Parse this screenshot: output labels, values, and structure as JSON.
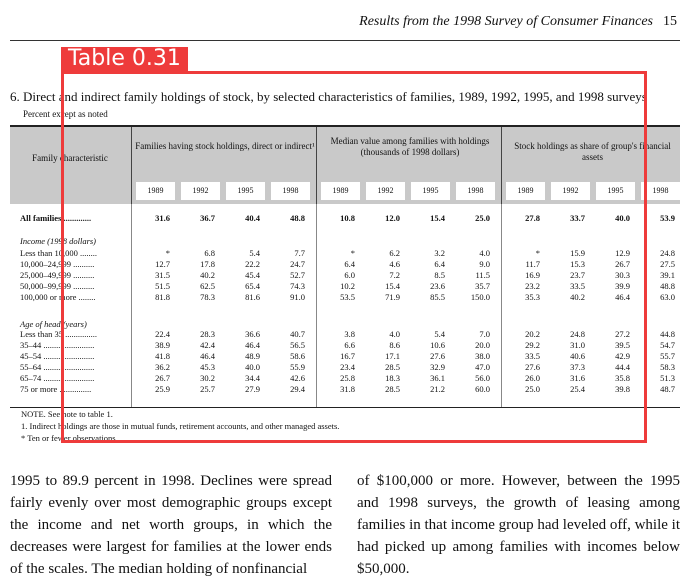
{
  "header": {
    "running_title": "Results from the 1998 Survey of Consumer Finances",
    "page_number": "15"
  },
  "detection": {
    "label": "Table 0.31"
  },
  "table": {
    "title": "6.  Direct and indirect family holdings of stock, by selected characteristics of families, 1989, 1992, 1995, and 1998 surveys",
    "subtitle": "Percent except as noted",
    "stub_header": "Family characteristic",
    "groups": [
      "Families having stock holdings, direct or indirect¹",
      "Median value among families with holdings (thousands of 1998 dollars)",
      "Stock holdings as share of group's financial assets"
    ],
    "years": [
      "1989",
      "1992",
      "1995",
      "1998"
    ],
    "sections": {
      "income": "Income (1998 dollars)",
      "age": "Age of head (years)"
    },
    "rows": [
      {
        "label": "All families .............",
        "values": [
          "31.6",
          "36.7",
          "40.4",
          "48.8",
          "10.8",
          "12.0",
          "15.4",
          "25.0",
          "27.8",
          "33.7",
          "40.0",
          "53.9"
        ]
      },
      {
        "label": "Less than 10,000 ........",
        "values": [
          "*",
          "6.8",
          "5.4",
          "7.7",
          "*",
          "6.2",
          "3.2",
          "4.0",
          "*",
          "15.9",
          "12.9",
          "24.8"
        ]
      },
      {
        "label": "10,000–24,999 ..........",
        "values": [
          "12.7",
          "17.8",
          "22.2",
          "24.7",
          "6.4",
          "4.6",
          "6.4",
          "9.0",
          "11.7",
          "15.3",
          "26.7",
          "27.5"
        ]
      },
      {
        "label": "25,000–49,999 ..........",
        "values": [
          "31.5",
          "40.2",
          "45.4",
          "52.7",
          "6.0",
          "7.2",
          "8.5",
          "11.5",
          "16.9",
          "23.7",
          "30.3",
          "39.1"
        ]
      },
      {
        "label": "50,000–99,999 ..........",
        "values": [
          "51.5",
          "62.5",
          "65.4",
          "74.3",
          "10.2",
          "15.4",
          "23.6",
          "35.7",
          "23.2",
          "33.5",
          "39.9",
          "48.8"
        ]
      },
      {
        "label": "100,000 or more ........",
        "values": [
          "81.8",
          "78.3",
          "81.6",
          "91.0",
          "53.5",
          "71.9",
          "85.5",
          "150.0",
          "35.3",
          "40.2",
          "46.4",
          "63.0"
        ]
      },
      {
        "label": "Less than 35 ...............",
        "values": [
          "22.4",
          "28.3",
          "36.6",
          "40.7",
          "3.8",
          "4.0",
          "5.4",
          "7.0",
          "20.2",
          "24.8",
          "27.2",
          "44.8"
        ]
      },
      {
        "label": "35–44 ........................",
        "values": [
          "38.9",
          "42.4",
          "46.4",
          "56.5",
          "6.6",
          "8.6",
          "10.6",
          "20.0",
          "29.2",
          "31.0",
          "39.5",
          "54.7"
        ]
      },
      {
        "label": "45–54 ........................",
        "values": [
          "41.8",
          "46.4",
          "48.9",
          "58.6",
          "16.7",
          "17.1",
          "27.6",
          "38.0",
          "33.5",
          "40.6",
          "42.9",
          "55.7"
        ]
      },
      {
        "label": "55–64 ........................",
        "values": [
          "36.2",
          "45.3",
          "40.0",
          "55.9",
          "23.4",
          "28.5",
          "32.9",
          "47.0",
          "27.6",
          "37.3",
          "44.4",
          "58.3"
        ]
      },
      {
        "label": "65–74 ........................",
        "values": [
          "26.7",
          "30.2",
          "34.4",
          "42.6",
          "25.8",
          "18.3",
          "36.1",
          "56.0",
          "26.0",
          "31.6",
          "35.8",
          "51.3"
        ]
      },
      {
        "label": "75 or more ...............",
        "values": [
          "25.9",
          "25.7",
          "27.9",
          "29.4",
          "31.8",
          "28.5",
          "21.2",
          "60.0",
          "25.0",
          "25.4",
          "39.8",
          "48.7"
        ]
      }
    ],
    "notes": [
      "NOTE.  See note to table 1.",
      "1.  Indirect holdings are those in mutual funds, retirement accounts, and other managed assets.",
      "*  Ten or fewer observations."
    ]
  },
  "body": {
    "left_column": "1995 to 89.9 percent in 1998. Declines were spread fairly evenly over most demographic groups except the income and net worth groups, in which the decreases were largest for families at the lower ends of the scales. The median holding of nonfinancial",
    "right_column": "of $100,000 or more. However, between the 1995 and 1998 surveys, the growth of leasing among families in that income group had leveled off, while it had picked up among families with incomes below $50,000."
  }
}
